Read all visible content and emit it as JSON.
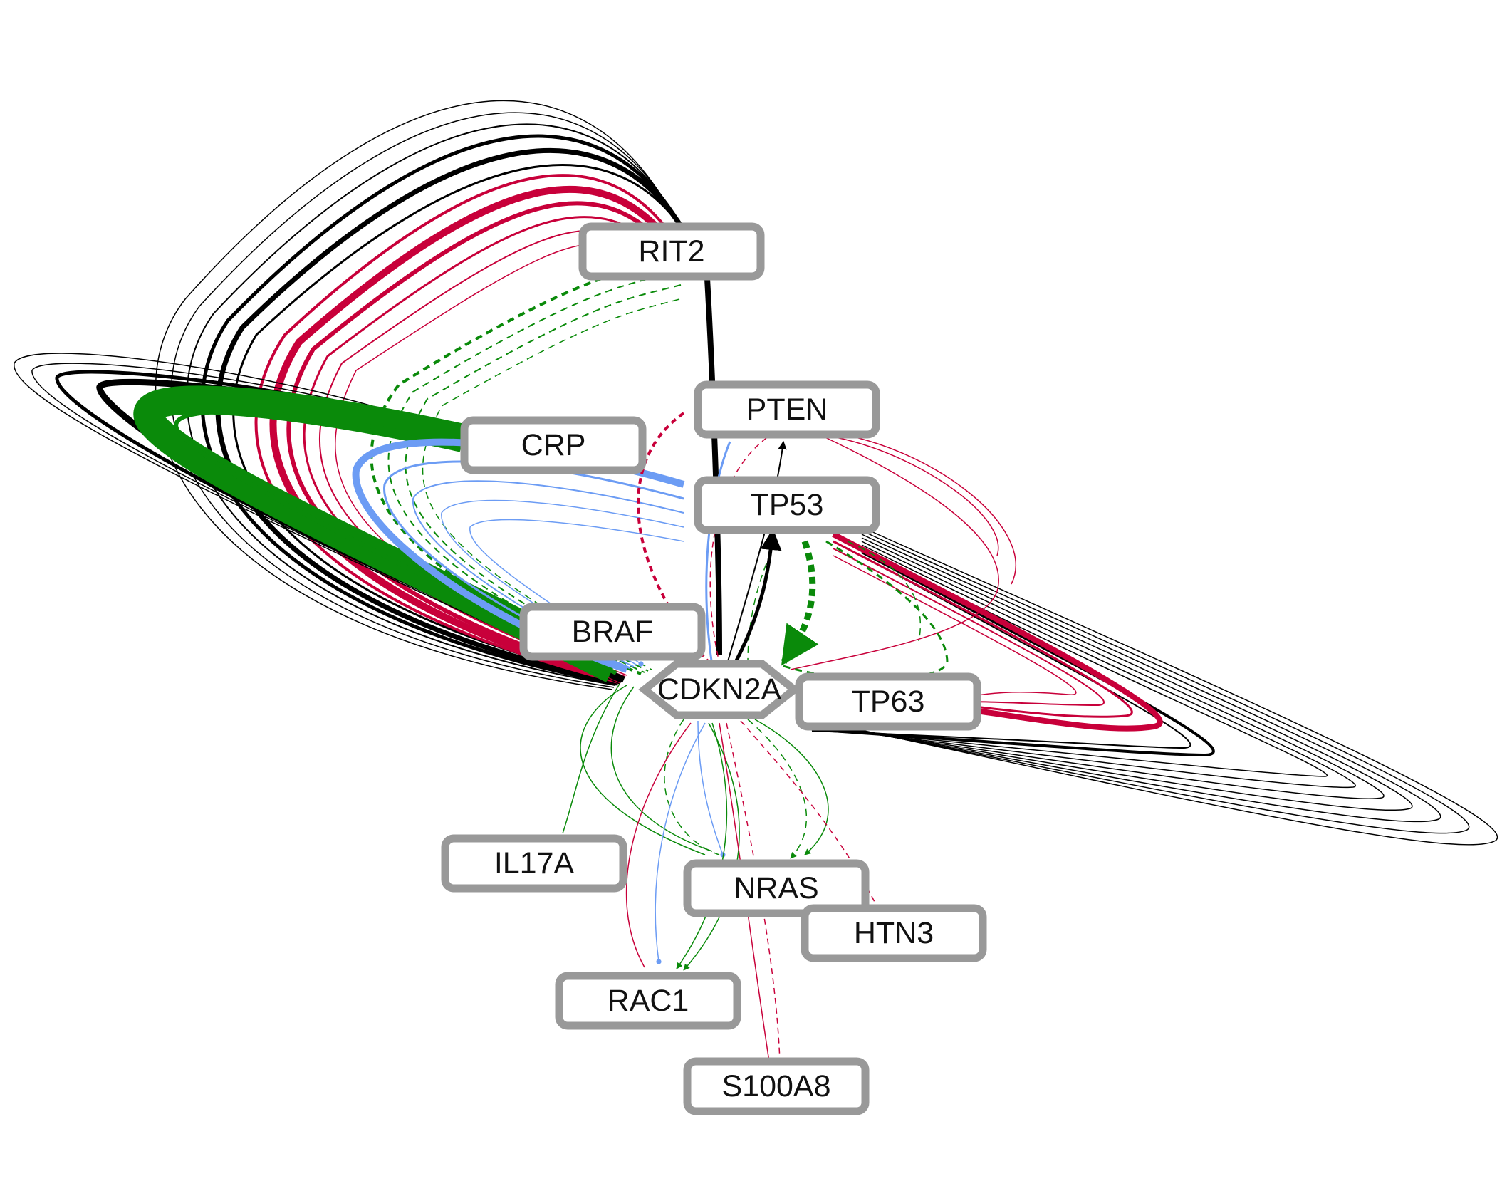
{
  "colors": {
    "black": "#000000",
    "red": "#c8003a",
    "green": "#0a8a0a",
    "blue": "#6c9cf4",
    "node_border": "#999999",
    "node_fill": "#ffffff"
  },
  "nodes": [
    {
      "id": "RIT2",
      "label": "RIT2",
      "shape": "rounded-box"
    },
    {
      "id": "PTEN",
      "label": "PTEN",
      "shape": "rounded-box"
    },
    {
      "id": "CRP",
      "label": "CRP",
      "shape": "rounded-box"
    },
    {
      "id": "TP53",
      "label": "TP53",
      "shape": "rounded-box"
    },
    {
      "id": "BRAF",
      "label": "BRAF",
      "shape": "rounded-box"
    },
    {
      "id": "CDKN2A",
      "label": "CDKN2A",
      "shape": "octagon"
    },
    {
      "id": "TP63",
      "label": "TP63",
      "shape": "rounded-box"
    },
    {
      "id": "IL17A",
      "label": "IL17A",
      "shape": "rounded-box"
    },
    {
      "id": "NRAS",
      "label": "NRAS",
      "shape": "rounded-box"
    },
    {
      "id": "HTN3",
      "label": "HTN3",
      "shape": "rounded-box"
    },
    {
      "id": "RAC1",
      "label": "RAC1",
      "shape": "rounded-box"
    },
    {
      "id": "S100A8",
      "label": "S100A8",
      "shape": "rounded-box"
    }
  ],
  "edge_styles": {
    "black-solid": {
      "color": "black",
      "dash": false
    },
    "red-solid": {
      "color": "red",
      "dash": false
    },
    "red-dashed": {
      "color": "red",
      "dash": true
    },
    "green-solid": {
      "color": "green",
      "dash": false
    },
    "green-dashed": {
      "color": "green",
      "dash": true
    },
    "blue-solid": {
      "color": "blue",
      "dash": false
    }
  },
  "edges": [
    {
      "from": "RIT2",
      "to": "CDKN2A",
      "style": "black-solid",
      "arrow": "arrow"
    },
    {
      "from": "RIT2",
      "to": "CDKN2A",
      "style": "red-solid",
      "arrow": "tee"
    },
    {
      "from": "RIT2",
      "to": "CDKN2A",
      "style": "green-dashed",
      "arrow": "arrow"
    },
    {
      "from": "CRP",
      "to": "CDKN2A",
      "style": "black-solid",
      "arrow": "arrow"
    },
    {
      "from": "CRP",
      "to": "CDKN2A",
      "style": "red-solid",
      "arrow": "tee"
    },
    {
      "from": "CRP",
      "to": "CDKN2A",
      "style": "green-solid",
      "arrow": "arrow"
    },
    {
      "from": "CRP",
      "to": "CDKN2A",
      "style": "blue-solid",
      "arrow": "circle"
    },
    {
      "from": "PTEN",
      "to": "CDKN2A",
      "style": "red-dashed",
      "arrow": "tee"
    },
    {
      "from": "PTEN",
      "to": "CDKN2A",
      "style": "green-dashed",
      "arrow": "arrow"
    },
    {
      "from": "CDKN2A",
      "to": "PTEN",
      "style": "black-solid",
      "arrow": "arrow"
    },
    {
      "from": "CDKN2A",
      "to": "TP53",
      "style": "black-solid",
      "arrow": "arrow"
    },
    {
      "from": "CDKN2A",
      "to": "TP53",
      "style": "green-dashed",
      "arrow": "arrow"
    },
    {
      "from": "TP53",
      "to": "CDKN2A",
      "style": "blue-solid",
      "arrow": "circle"
    },
    {
      "from": "TP63",
      "to": "CDKN2A",
      "style": "black-solid",
      "arrow": "arrow"
    },
    {
      "from": "TP63",
      "to": "CDKN2A",
      "style": "red-solid",
      "arrow": "tee"
    },
    {
      "from": "TP63",
      "to": "CDKN2A",
      "style": "green-dashed",
      "arrow": "arrow"
    },
    {
      "from": "BRAF",
      "to": "CDKN2A",
      "style": "blue-solid",
      "arrow": "circle"
    },
    {
      "from": "BRAF",
      "to": "CDKN2A",
      "style": "green-solid",
      "arrow": "arrow"
    },
    {
      "from": "BRAF",
      "to": "CDKN2A",
      "style": "red-dashed",
      "arrow": "tee"
    },
    {
      "from": "CDKN2A",
      "to": "IL17A",
      "style": "green-solid",
      "arrow": "arrow"
    },
    {
      "from": "CDKN2A",
      "to": "NRAS",
      "style": "green-solid",
      "arrow": "arrow"
    },
    {
      "from": "CDKN2A",
      "to": "NRAS",
      "style": "green-dashed",
      "arrow": "arrow"
    },
    {
      "from": "CDKN2A",
      "to": "NRAS",
      "style": "blue-solid",
      "arrow": "circle"
    },
    {
      "from": "CDKN2A",
      "to": "HTN3",
      "style": "red-dashed",
      "arrow": "tee"
    },
    {
      "from": "CDKN2A",
      "to": "RAC1",
      "style": "green-solid",
      "arrow": "arrow"
    },
    {
      "from": "CDKN2A",
      "to": "RAC1",
      "style": "blue-solid",
      "arrow": "circle"
    },
    {
      "from": "CDKN2A",
      "to": "RAC1",
      "style": "red-solid",
      "arrow": "tee"
    },
    {
      "from": "CDKN2A",
      "to": "S100A8",
      "style": "red-solid",
      "arrow": "tee"
    },
    {
      "from": "CDKN2A",
      "to": "S100A8",
      "style": "red-dashed",
      "arrow": "tee"
    }
  ]
}
